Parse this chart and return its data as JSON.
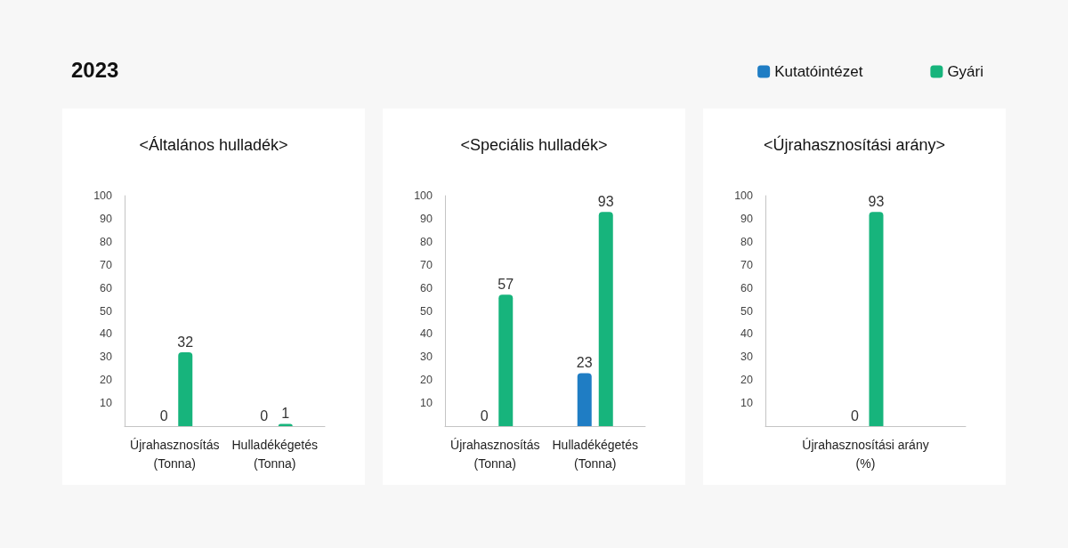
{
  "chart_data": [
    {
      "type": "bar",
      "title": "<Általános hulladék>",
      "annotations": [
        "2023"
      ],
      "categories": [
        "Újrahasznosítás (Tonna)",
        "Hulladékégetés (Tonna)"
      ],
      "series": [
        {
          "color": "#1f7dc4",
          "values": [
            0,
            0
          ]
        },
        {
          "color": "#17b47c",
          "values": [
            32,
            1
          ]
        }
      ],
      "ylim": [
        0,
        100
      ],
      "yticks": [
        10,
        20,
        30,
        40,
        50,
        60,
        70,
        80,
        90,
        100
      ],
      "data_labels": true
    },
    {
      "type": "bar",
      "title": "<Speciális hulladék>",
      "categories": [
        "Újrahasznosítás (Tonna)",
        "Hulladékégetés (Tonna)"
      ],
      "series": [
        {
          "color": "#1f7dc4",
          "values": [
            0,
            23
          ]
        },
        {
          "color": "#17b47c",
          "values": [
            57,
            93
          ]
        }
      ],
      "ylim": [
        0,
        100
      ],
      "yticks": [
        10,
        20,
        30,
        40,
        50,
        60,
        70,
        80,
        90,
        100
      ],
      "data_labels": true
    },
    {
      "type": "bar",
      "title": "<Újrahasznosítási arány>",
      "categories": [
        "Újrahasznosítási arány (%)"
      ],
      "series": [
        {
          "name": "Kutatóintézet",
          "color": "#1f7dc4",
          "values": [
            0
          ]
        },
        {
          "name": "Gyári",
          "color": "#17b47c",
          "values": [
            93
          ]
        }
      ],
      "ylim": [
        0,
        100
      ],
      "yticks": [
        10,
        20,
        30,
        40,
        50,
        60,
        70,
        80,
        90,
        100
      ],
      "data_labels": true,
      "legend": "top right"
    }
  ]
}
